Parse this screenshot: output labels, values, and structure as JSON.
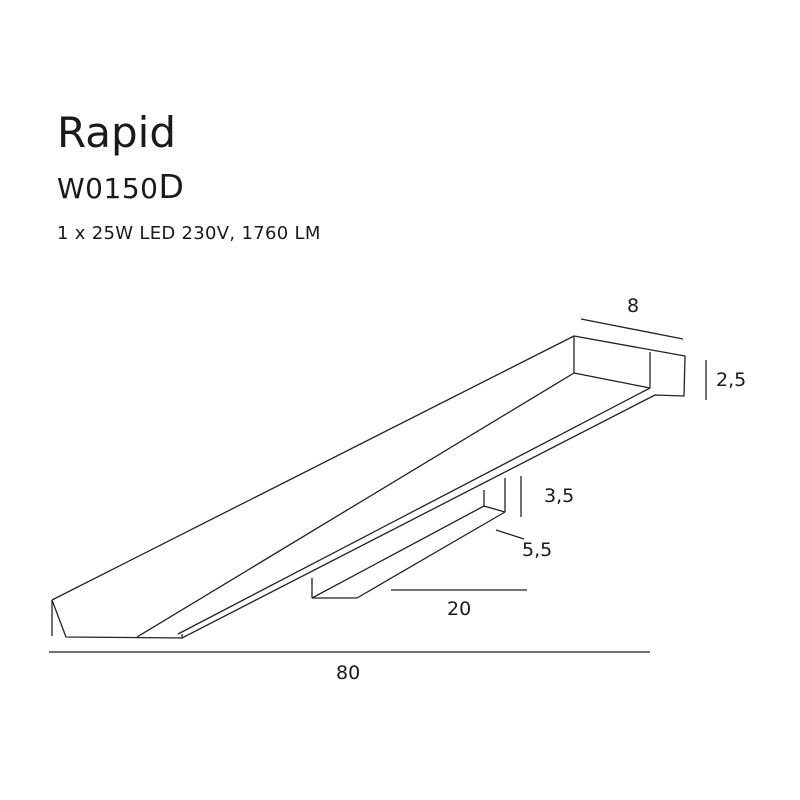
{
  "product": {
    "name": "Rapid",
    "code": "W0150",
    "code_suffix": "D",
    "spec": "1 x 25W LED 230V, 1760 LM"
  },
  "dimensions": {
    "depth": "8",
    "height": "2,5",
    "arm_height": "3,5",
    "arm_depth": "5,5",
    "arm_length": "20",
    "total_length": "80"
  }
}
